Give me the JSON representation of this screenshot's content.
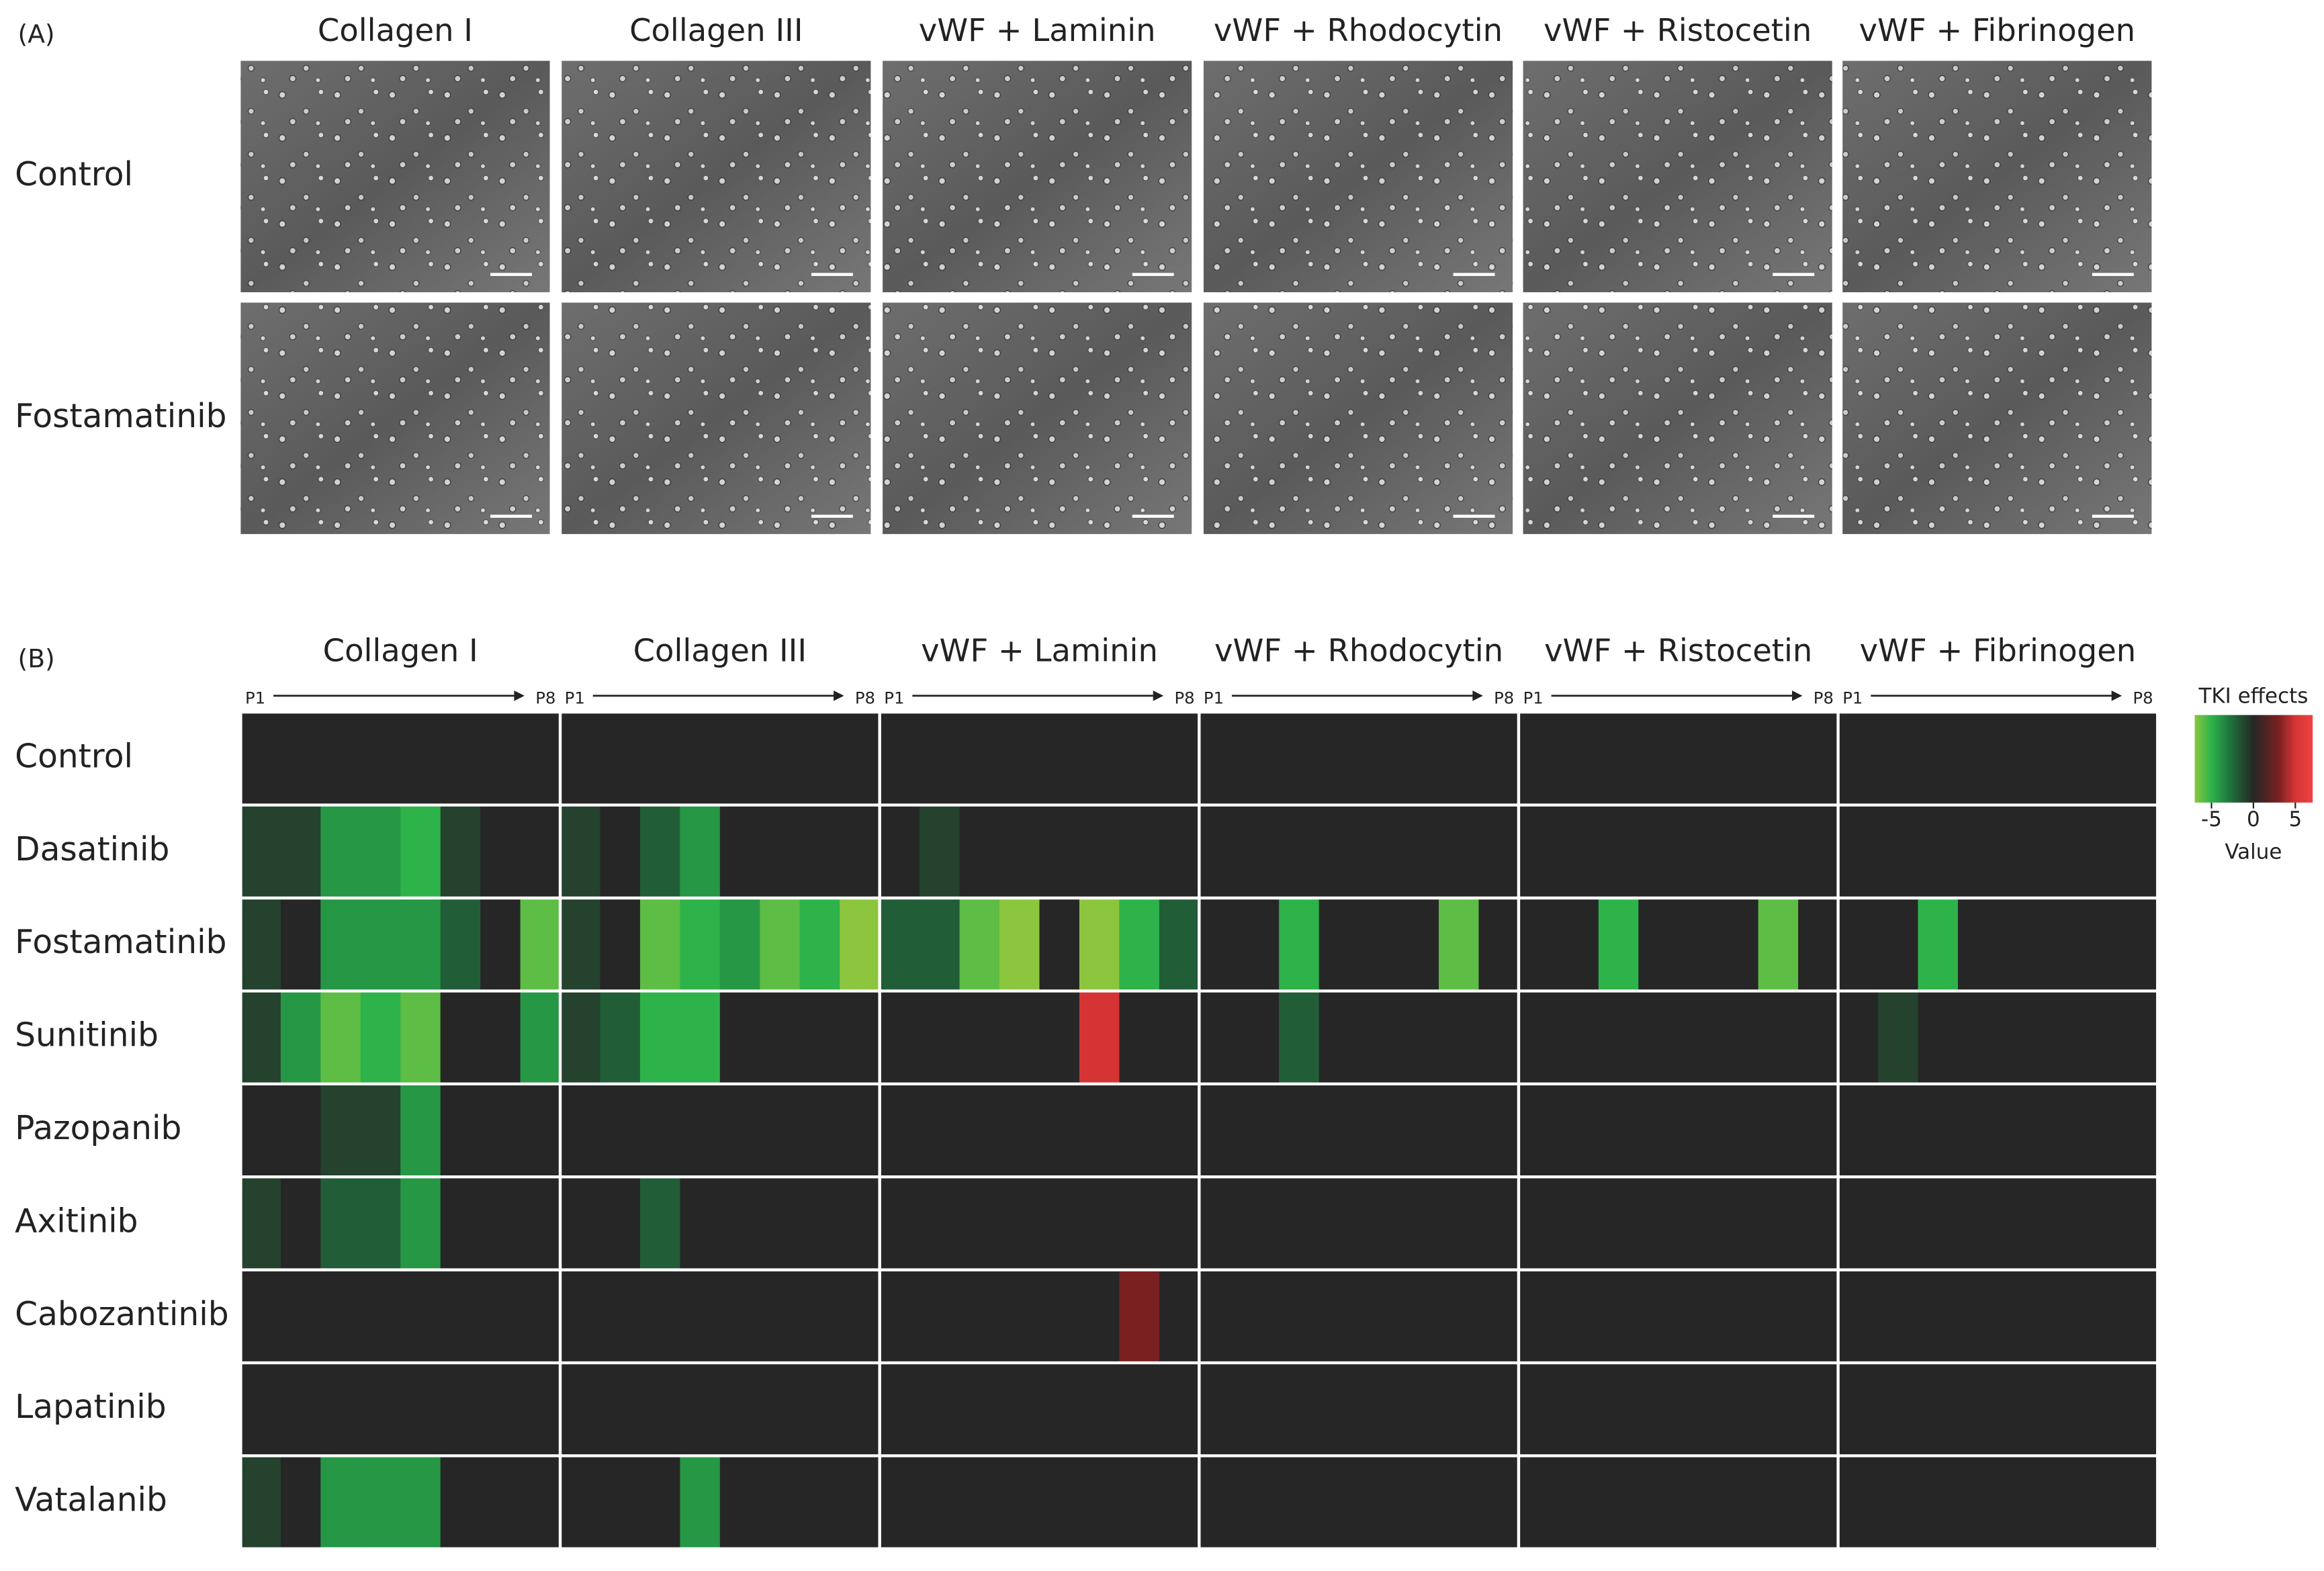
{
  "panel_a": {
    "label": "(A)",
    "columns": [
      "Collagen I",
      "Collagen III",
      "vWF + Laminin",
      "vWF + Rhodocytin",
      "vWF + Ristocetin",
      "vWF + Fibrinogen"
    ],
    "rows": [
      "Control",
      "Fostamatinib"
    ]
  },
  "chart_data": {
    "type": "heatmap",
    "panel_label": "(B)",
    "column_groups": [
      "Collagen I",
      "Collagen III",
      "vWF + Laminin",
      "vWF + Rhodocytin",
      "vWF + Ristocetin",
      "vWF + Fibrinogen"
    ],
    "passage_labels": [
      "P1",
      "P8"
    ],
    "rows": [
      "Control",
      "Dasatinib",
      "Fostamatinib",
      "Sunitinib",
      "Pazopanib",
      "Axitinib",
      "Cabozantinib",
      "Lapatinib",
      "Vatalanib"
    ],
    "values": [
      [
        0,
        0,
        0,
        0,
        0,
        0,
        0,
        0,
        0,
        0,
        0,
        0,
        0,
        0,
        0,
        0,
        0,
        0,
        0,
        0,
        0,
        0,
        0,
        0,
        0,
        0,
        0,
        0,
        0,
        0,
        0,
        0,
        0,
        0,
        0,
        0,
        0,
        0,
        0,
        0,
        0,
        0,
        0,
        0,
        0,
        0,
        0,
        0
      ],
      [
        -1,
        -1,
        -4,
        -4,
        -5,
        -1,
        0,
        0,
        -1,
        0,
        -2,
        -4,
        0,
        0,
        0,
        0,
        0,
        -1,
        0,
        0,
        0,
        0,
        0,
        0,
        0,
        0,
        0,
        0,
        0,
        0,
        0,
        0,
        0,
        0,
        0,
        0,
        0,
        0,
        0,
        0,
        0,
        0,
        0,
        0,
        0,
        0,
        0,
        0
      ],
      [
        -1,
        0,
        -4,
        -4,
        -4,
        -2,
        0,
        -6,
        -1,
        0,
        -6,
        -5,
        -4,
        -6,
        -5,
        -7,
        -2,
        -2,
        -6,
        -7,
        0,
        -7,
        -5,
        -2,
        0,
        0,
        -5,
        0,
        0,
        0,
        -6,
        0,
        0,
        0,
        -5,
        0,
        0,
        0,
        -6,
        0,
        0,
        0,
        -5,
        0,
        0,
        0,
        0,
        0
      ],
      [
        -1,
        -4,
        -6,
        -5,
        -6,
        0,
        0,
        -4,
        -1,
        -2,
        -5,
        -5,
        0,
        0,
        0,
        0,
        0,
        0,
        0,
        0,
        0,
        5,
        0,
        0,
        0,
        0,
        -2,
        0,
        0,
        0,
        0,
        0,
        0,
        0,
        0,
        0,
        0,
        0,
        0,
        0,
        0,
        -1,
        0,
        0,
        0,
        0,
        0,
        0
      ],
      [
        0,
        0,
        -1,
        -1,
        -4,
        0,
        0,
        0,
        0,
        0,
        0,
        0,
        0,
        0,
        0,
        0,
        0,
        0,
        0,
        0,
        0,
        0,
        0,
        0,
        0,
        0,
        0,
        0,
        0,
        0,
        0,
        0,
        0,
        0,
        0,
        0,
        0,
        0,
        0,
        0,
        0,
        0,
        0,
        0,
        0,
        0,
        0,
        0
      ],
      [
        -1,
        0,
        -2,
        -2,
        -4,
        0,
        0,
        0,
        0,
        0,
        -2,
        0,
        0,
        0,
        0,
        0,
        0,
        0,
        0,
        0,
        0,
        0,
        0,
        0,
        0,
        0,
        0,
        0,
        0,
        0,
        0,
        0,
        0,
        0,
        0,
        0,
        0,
        0,
        0,
        0,
        0,
        0,
        0,
        0,
        0,
        0,
        0,
        0
      ],
      [
        0,
        0,
        0,
        0,
        0,
        0,
        0,
        0,
        0,
        0,
        0,
        0,
        0,
        0,
        0,
        0,
        0,
        0,
        0,
        0,
        0,
        0,
        3,
        0,
        0,
        0,
        0,
        0,
        0,
        0,
        0,
        0,
        0,
        0,
        0,
        0,
        0,
        0,
        0,
        0,
        0,
        0,
        0,
        0,
        0,
        0,
        0,
        0
      ],
      [
        0,
        0,
        0,
        0,
        0,
        0,
        0,
        0,
        0,
        0,
        0,
        0,
        0,
        0,
        0,
        0,
        0,
        0,
        0,
        0,
        0,
        0,
        0,
        0,
        0,
        0,
        0,
        0,
        0,
        0,
        0,
        0,
        0,
        0,
        0,
        0,
        0,
        0,
        0,
        0,
        0,
        0,
        0,
        0,
        0,
        0,
        0,
        0
      ],
      [
        -1,
        0,
        -4,
        -4,
        -4,
        0,
        0,
        0,
        0,
        0,
        0,
        -4,
        0,
        0,
        0,
        0,
        0,
        0,
        0,
        0,
        0,
        0,
        0,
        0,
        0,
        0,
        0,
        0,
        0,
        0,
        0,
        0,
        0,
        0,
        0,
        0,
        0,
        0,
        0,
        0,
        0,
        0,
        0,
        0,
        0,
        0,
        0,
        0
      ]
    ],
    "colorscale": [
      [
        -7,
        "#8cc63f"
      ],
      [
        -5,
        "#2db34a"
      ],
      [
        -3,
        "#1f7a3f"
      ],
      [
        0,
        "#262626"
      ],
      [
        3,
        "#7a2020"
      ],
      [
        5,
        "#d63434"
      ],
      [
        7,
        "#ec4242"
      ]
    ],
    "colorbar_title": "TKI effects",
    "colorbar_label": "Value",
    "zlim": [
      -7,
      7
    ],
    "colorbar_ticks": [
      -5,
      0,
      5
    ]
  }
}
